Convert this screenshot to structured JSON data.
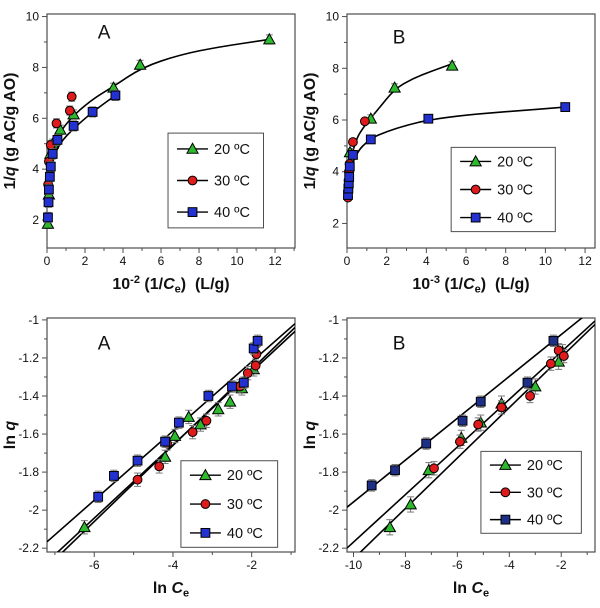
{
  "page": {
    "background": "#ffffff",
    "description_visible_text_only": true
  },
  "colors": {
    "green_marker": "#2db92d",
    "red_marker": "#df1b1b",
    "blue_marker": "#2231cf",
    "navy_marker": "#1d2f86",
    "fit_line": "#000000",
    "error_bar": "#7a7a7a",
    "frame": "#4d4d4d",
    "text": "#111111"
  },
  "chart_data": [
    {
      "panel_label": "A",
      "position": "top-left",
      "type": "scatter",
      "xlabel_rich": [
        {
          "t": "10"
        },
        {
          "t": "-2",
          "sup": true
        },
        {
          "t": " (1/"
        },
        {
          "t": "C",
          "i": true
        },
        {
          "t": "e",
          "sub": true
        },
        {
          "t": ")  (L/g)"
        }
      ],
      "ylabel_rich": [
        {
          "t": "1/"
        },
        {
          "t": "q",
          "i": true
        },
        {
          "t": " (g AC/g AO)"
        }
      ],
      "xlim": [
        0,
        13.05
      ],
      "ylim": [
        0.9,
        10.1
      ],
      "xticks": {
        "major": [
          0,
          2,
          4,
          6,
          8,
          10,
          12
        ],
        "labels": [
          "0",
          "2",
          "4",
          "6",
          "8",
          "10",
          "12"
        ],
        "minor": [
          1,
          3,
          5,
          7,
          9,
          11,
          13
        ]
      },
      "yticks": {
        "major": [
          2,
          4,
          6,
          8,
          10
        ],
        "labels": [
          "2",
          "4",
          "6",
          "8",
          "10"
        ],
        "minor": [
          3,
          5,
          7,
          9
        ]
      },
      "letter_pos": {
        "fx": 0.23,
        "fy": 0.08
      },
      "legend_pos": {
        "fx": 0.488,
        "fy": 0.509,
        "fw": 0.385,
        "fh": 0.405
      },
      "series": [
        {
          "name": "20 ºC",
          "marker": "triangle",
          "color": "#2db92d",
          "yerr": 0.18,
          "points": [
            [
              0.05,
              1.85
            ],
            [
              0.1,
              3.0
            ],
            [
              0.18,
              4.6
            ],
            [
              0.3,
              5.0
            ],
            [
              0.7,
              5.55
            ],
            [
              1.4,
              6.15
            ],
            [
              3.5,
              7.2
            ],
            [
              4.9,
              8.1
            ],
            [
              11.7,
              9.1
            ]
          ]
        },
        {
          "name": "30 ºC",
          "marker": "circle",
          "color": "#df1b1b",
          "yerr": 0.18,
          "points": [
            [
              0.06,
              3.4
            ],
            [
              0.1,
              4.3
            ],
            [
              0.2,
              4.95
            ],
            [
              0.5,
              5.8
            ],
            [
              1.2,
              6.3
            ],
            [
              1.3,
              6.85
            ]
          ]
        },
        {
          "name": "40 ºC",
          "marker": "square",
          "color": "#2231cf",
          "yerr": 0.2,
          "points": [
            [
              0.05,
              2.1
            ],
            [
              0.08,
              2.7
            ],
            [
              0.1,
              3.2
            ],
            [
              0.15,
              3.7
            ],
            [
              0.2,
              4.1
            ],
            [
              0.3,
              4.6
            ],
            [
              0.55,
              5.15
            ],
            [
              1.4,
              5.7
            ],
            [
              2.4,
              6.25
            ],
            [
              3.6,
              6.9
            ]
          ]
        }
      ],
      "fit_curves": [
        {
          "points": [
            [
              0.1,
              3.8
            ],
            [
              0.3,
              4.8
            ],
            [
              0.7,
              5.5
            ],
            [
              1.5,
              6.2
            ],
            [
              2.5,
              6.8
            ],
            [
              3.5,
              7.25
            ],
            [
              5.0,
              8.0
            ],
            [
              7.0,
              8.5
            ],
            [
              9.0,
              8.8
            ],
            [
              11.7,
              9.1
            ]
          ]
        },
        {
          "points": [
            [
              0.1,
              3.5
            ],
            [
              0.3,
              4.4
            ],
            [
              0.7,
              5.05
            ],
            [
              1.4,
              5.6
            ],
            [
              2.4,
              6.25
            ],
            [
              3.6,
              6.9
            ]
          ]
        }
      ],
      "fit_lines": []
    },
    {
      "panel_label": "B",
      "position": "top-right",
      "type": "scatter",
      "xlabel_rich": [
        {
          "t": "10"
        },
        {
          "t": "-3",
          "sup": true
        },
        {
          "t": " (1/"
        },
        {
          "t": "C",
          "i": true
        },
        {
          "t": "e",
          "sub": true
        },
        {
          "t": ")  (L/g)"
        }
      ],
      "ylabel_rich": [
        {
          "t": "1/"
        },
        {
          "t": "q",
          "i": true
        },
        {
          "t": " (g AC/g AO)"
        }
      ],
      "xlim": [
        0,
        12.5
      ],
      "ylim": [
        1.05,
        10.1
      ],
      "xticks": {
        "major": [
          0,
          2,
          4,
          6,
          8,
          10,
          12
        ],
        "labels": [
          "0",
          "2",
          "4",
          "6",
          "8",
          "10",
          "12"
        ],
        "minor": [
          1,
          3,
          5,
          7,
          9,
          11
        ]
      },
      "yticks": {
        "major": [
          2,
          4,
          6,
          8,
          10
        ],
        "labels": [
          "2",
          "4",
          "6",
          "8",
          "10"
        ],
        "minor": [
          3,
          5,
          7,
          9
        ]
      },
      "letter_pos": {
        "fx": 0.21,
        "fy": 0.1
      },
      "legend_pos": {
        "fx": 0.42,
        "fy": 0.57,
        "fw": 0.42,
        "fh": 0.36
      },
      "series": [
        {
          "name": "20 ºC",
          "marker": "triangle",
          "color": "#2db92d",
          "yerr": 0.15,
          "points": [
            [
              0.15,
              4.75
            ],
            [
              1.2,
              6.05
            ],
            [
              2.4,
              7.25
            ],
            [
              5.3,
              8.1
            ]
          ]
        },
        {
          "name": "30 ºC",
          "marker": "circle",
          "color": "#df1b1b",
          "yerr": 0.12,
          "points": [
            [
              0.05,
              3.0
            ],
            [
              0.06,
              3.3
            ],
            [
              0.08,
              3.65
            ],
            [
              0.1,
              4.0
            ],
            [
              0.13,
              4.3
            ],
            [
              0.3,
              5.15
            ],
            [
              0.9,
              5.95
            ]
          ]
        },
        {
          "name": "40 ºC",
          "marker": "square",
          "color": "#2231cf",
          "yerr": 0.15,
          "points": [
            [
              0.05,
              3.1
            ],
            [
              0.07,
              3.35
            ],
            [
              0.09,
              3.55
            ],
            [
              0.11,
              3.8
            ],
            [
              0.14,
              4.2
            ],
            [
              0.3,
              4.65
            ],
            [
              1.2,
              5.25
            ],
            [
              4.1,
              6.05
            ],
            [
              11.0,
              6.5
            ]
          ]
        }
      ],
      "fit_curves": [
        {
          "points": [
            [
              0.1,
              4.2
            ],
            [
              0.4,
              5.2
            ],
            [
              0.9,
              5.8
            ],
            [
              1.5,
              6.35
            ],
            [
              2.4,
              7.2
            ],
            [
              3.3,
              7.6
            ],
            [
              4.3,
              7.9
            ],
            [
              5.4,
              8.2
            ]
          ]
        },
        {
          "points": [
            [
              0.1,
              3.9
            ],
            [
              0.4,
              4.7
            ],
            [
              1.2,
              5.3
            ],
            [
              2.0,
              5.55
            ],
            [
              3.0,
              5.8
            ],
            [
              4.1,
              6.0
            ],
            [
              6.0,
              6.2
            ],
            [
              8.5,
              6.35
            ],
            [
              11.0,
              6.5
            ]
          ]
        }
      ],
      "fit_lines": []
    },
    {
      "panel_label": "A",
      "position": "bottom-left",
      "type": "scatter",
      "xlabel_rich": [
        {
          "t": "ln "
        },
        {
          "t": "C",
          "i": true
        },
        {
          "t": "e",
          "sub": true
        }
      ],
      "ylabel_rich": [
        {
          "t": "ln "
        },
        {
          "t": "q",
          "i": true
        }
      ],
      "xlim": [
        -7.2,
        -0.9
      ],
      "ylim": [
        -2.22,
        -0.99
      ],
      "xticks": {
        "major": [
          -6,
          -4,
          -2
        ],
        "labels": [
          "-6",
          "-4",
          "-2"
        ],
        "minor": [
          -7,
          -5,
          -3,
          -1
        ]
      },
      "yticks": {
        "major": [
          -1,
          -1.2,
          -1.4,
          -1.6,
          -1.8,
          -2,
          -2.2
        ],
        "labels": [
          "-1",
          "-1.2",
          "-1.4",
          "-1.6",
          "-1.8",
          "-2",
          "-2.2"
        ],
        "minor": [
          -1.1,
          -1.3,
          -1.5,
          -1.7,
          -1.9,
          -2.1
        ]
      },
      "letter_pos": {
        "fx": 0.23,
        "fy": 0.11
      },
      "legend_pos": {
        "fx": 0.54,
        "fy": 0.61,
        "fw": 0.39,
        "fh": 0.37
      },
      "series": [
        {
          "name": "20 ºC",
          "marker": "triangle",
          "color": "#2db92d",
          "yerr": 0.035,
          "points": [
            [
              -6.25,
              -2.09
            ],
            [
              -4.2,
              -1.72
            ],
            [
              -3.95,
              -1.61
            ],
            [
              -3.6,
              -1.51
            ],
            [
              -3.3,
              -1.55
            ],
            [
              -2.85,
              -1.47
            ],
            [
              -2.55,
              -1.43
            ],
            [
              -2.25,
              -1.36
            ],
            [
              -1.95,
              -1.26
            ]
          ]
        },
        {
          "name": "30 ºC",
          "marker": "circle",
          "color": "#df1b1b",
          "yerr": 0.035,
          "points": [
            [
              -4.9,
              -1.84
            ],
            [
              -4.35,
              -1.77
            ],
            [
              -4.15,
              -1.65
            ],
            [
              -3.5,
              -1.59
            ],
            [
              -3.15,
              -1.53
            ],
            [
              -2.3,
              -1.35
            ],
            [
              -2.1,
              -1.28
            ],
            [
              -1.9,
              -1.24
            ],
            [
              -1.88,
              -1.18
            ]
          ]
        },
        {
          "name": "40 ºC",
          "marker": "square",
          "color": "#2231cf",
          "yerr": 0.03,
          "points": [
            [
              -5.9,
              -1.93
            ],
            [
              -5.5,
              -1.82
            ],
            [
              -4.9,
              -1.74
            ],
            [
              -4.2,
              -1.64
            ],
            [
              -3.85,
              -1.54
            ],
            [
              -3.1,
              -1.4
            ],
            [
              -2.5,
              -1.35
            ],
            [
              -2.2,
              -1.33
            ],
            [
              -1.95,
              -1.15
            ],
            [
              -1.85,
              -1.11
            ]
          ]
        }
      ],
      "fit_curves": [],
      "fit_lines": [
        {
          "slope": 0.1925,
          "intercept": -0.887
        },
        {
          "slope": 0.2,
          "intercept": -0.86
        },
        {
          "slope": 0.182,
          "intercept": -0.856
        }
      ]
    },
    {
      "panel_label": "B",
      "position": "bottom-right",
      "type": "scatter",
      "xlabel_rich": [
        {
          "t": "ln "
        },
        {
          "t": "C",
          "i": true
        },
        {
          "t": "e",
          "sub": true
        }
      ],
      "ylabel_rich": [
        {
          "t": "ln "
        },
        {
          "t": "q",
          "i": true
        }
      ],
      "xlim": [
        -10.25,
        -0.7
      ],
      "ylim": [
        -2.22,
        -0.99
      ],
      "xticks": {
        "major": [
          -10,
          -8,
          -6,
          -4,
          -2
        ],
        "labels": [
          "-10",
          "-8",
          "-6",
          "-4",
          "-2"
        ],
        "minor": [
          -9,
          -7,
          -5,
          -3,
          -1
        ]
      },
      "yticks": {
        "major": [
          -1,
          -1.2,
          -1.4,
          -1.6,
          -1.8,
          -2,
          -2.2
        ],
        "labels": [
          "-1",
          "-1.2",
          "-1.4",
          "-1.6",
          "-1.8",
          "-2",
          "-2.2"
        ],
        "minor": [
          -1.1,
          -1.3,
          -1.5,
          -1.7,
          -1.9,
          -2.1
        ]
      },
      "letter_pos": {
        "fx": 0.21,
        "fy": 0.11
      },
      "legend_pos": {
        "fx": 0.54,
        "fy": 0.57,
        "fw": 0.405,
        "fh": 0.35
      },
      "series": [
        {
          "name": "20 ºC",
          "marker": "triangle",
          "color": "#2db92d",
          "yerr": 0.04,
          "points": [
            [
              -8.6,
              -2.09
            ],
            [
              -7.8,
              -1.97
            ],
            [
              -7.1,
              -1.79
            ],
            [
              -5.85,
              -1.62
            ],
            [
              -5.1,
              -1.54
            ],
            [
              -4.3,
              -1.44
            ],
            [
              -3.0,
              -1.35
            ],
            [
              -2.1,
              -1.22
            ],
            [
              -1.95,
              -1.17
            ]
          ]
        },
        {
          "name": "30 ºC",
          "marker": "circle",
          "color": "#df1b1b",
          "yerr": 0.035,
          "points": [
            [
              -6.9,
              -1.78
            ],
            [
              -5.9,
              -1.64
            ],
            [
              -5.2,
              -1.55
            ],
            [
              -4.3,
              -1.46
            ],
            [
              -3.2,
              -1.4
            ],
            [
              -2.4,
              -1.23
            ],
            [
              -2.1,
              -1.16
            ],
            [
              -1.9,
              -1.19
            ]
          ]
        },
        {
          "name": "40 ºC",
          "marker": "square",
          "color": "#1d2f86",
          "yerr": 0.03,
          "points": [
            [
              -9.3,
              -1.87
            ],
            [
              -8.4,
              -1.79
            ],
            [
              -7.2,
              -1.65
            ],
            [
              -5.8,
              -1.53
            ],
            [
              -5.1,
              -1.43
            ],
            [
              -3.3,
              -1.33
            ],
            [
              -2.3,
              -1.11
            ]
          ]
        }
      ],
      "fit_curves": [],
      "fit_lines": [
        {
          "slope": 0.1325,
          "intercept": -0.931
        },
        {
          "slope": 0.125,
          "intercept": -0.918
        },
        {
          "slope": 0.11,
          "intercept": -0.857
        }
      ]
    }
  ]
}
